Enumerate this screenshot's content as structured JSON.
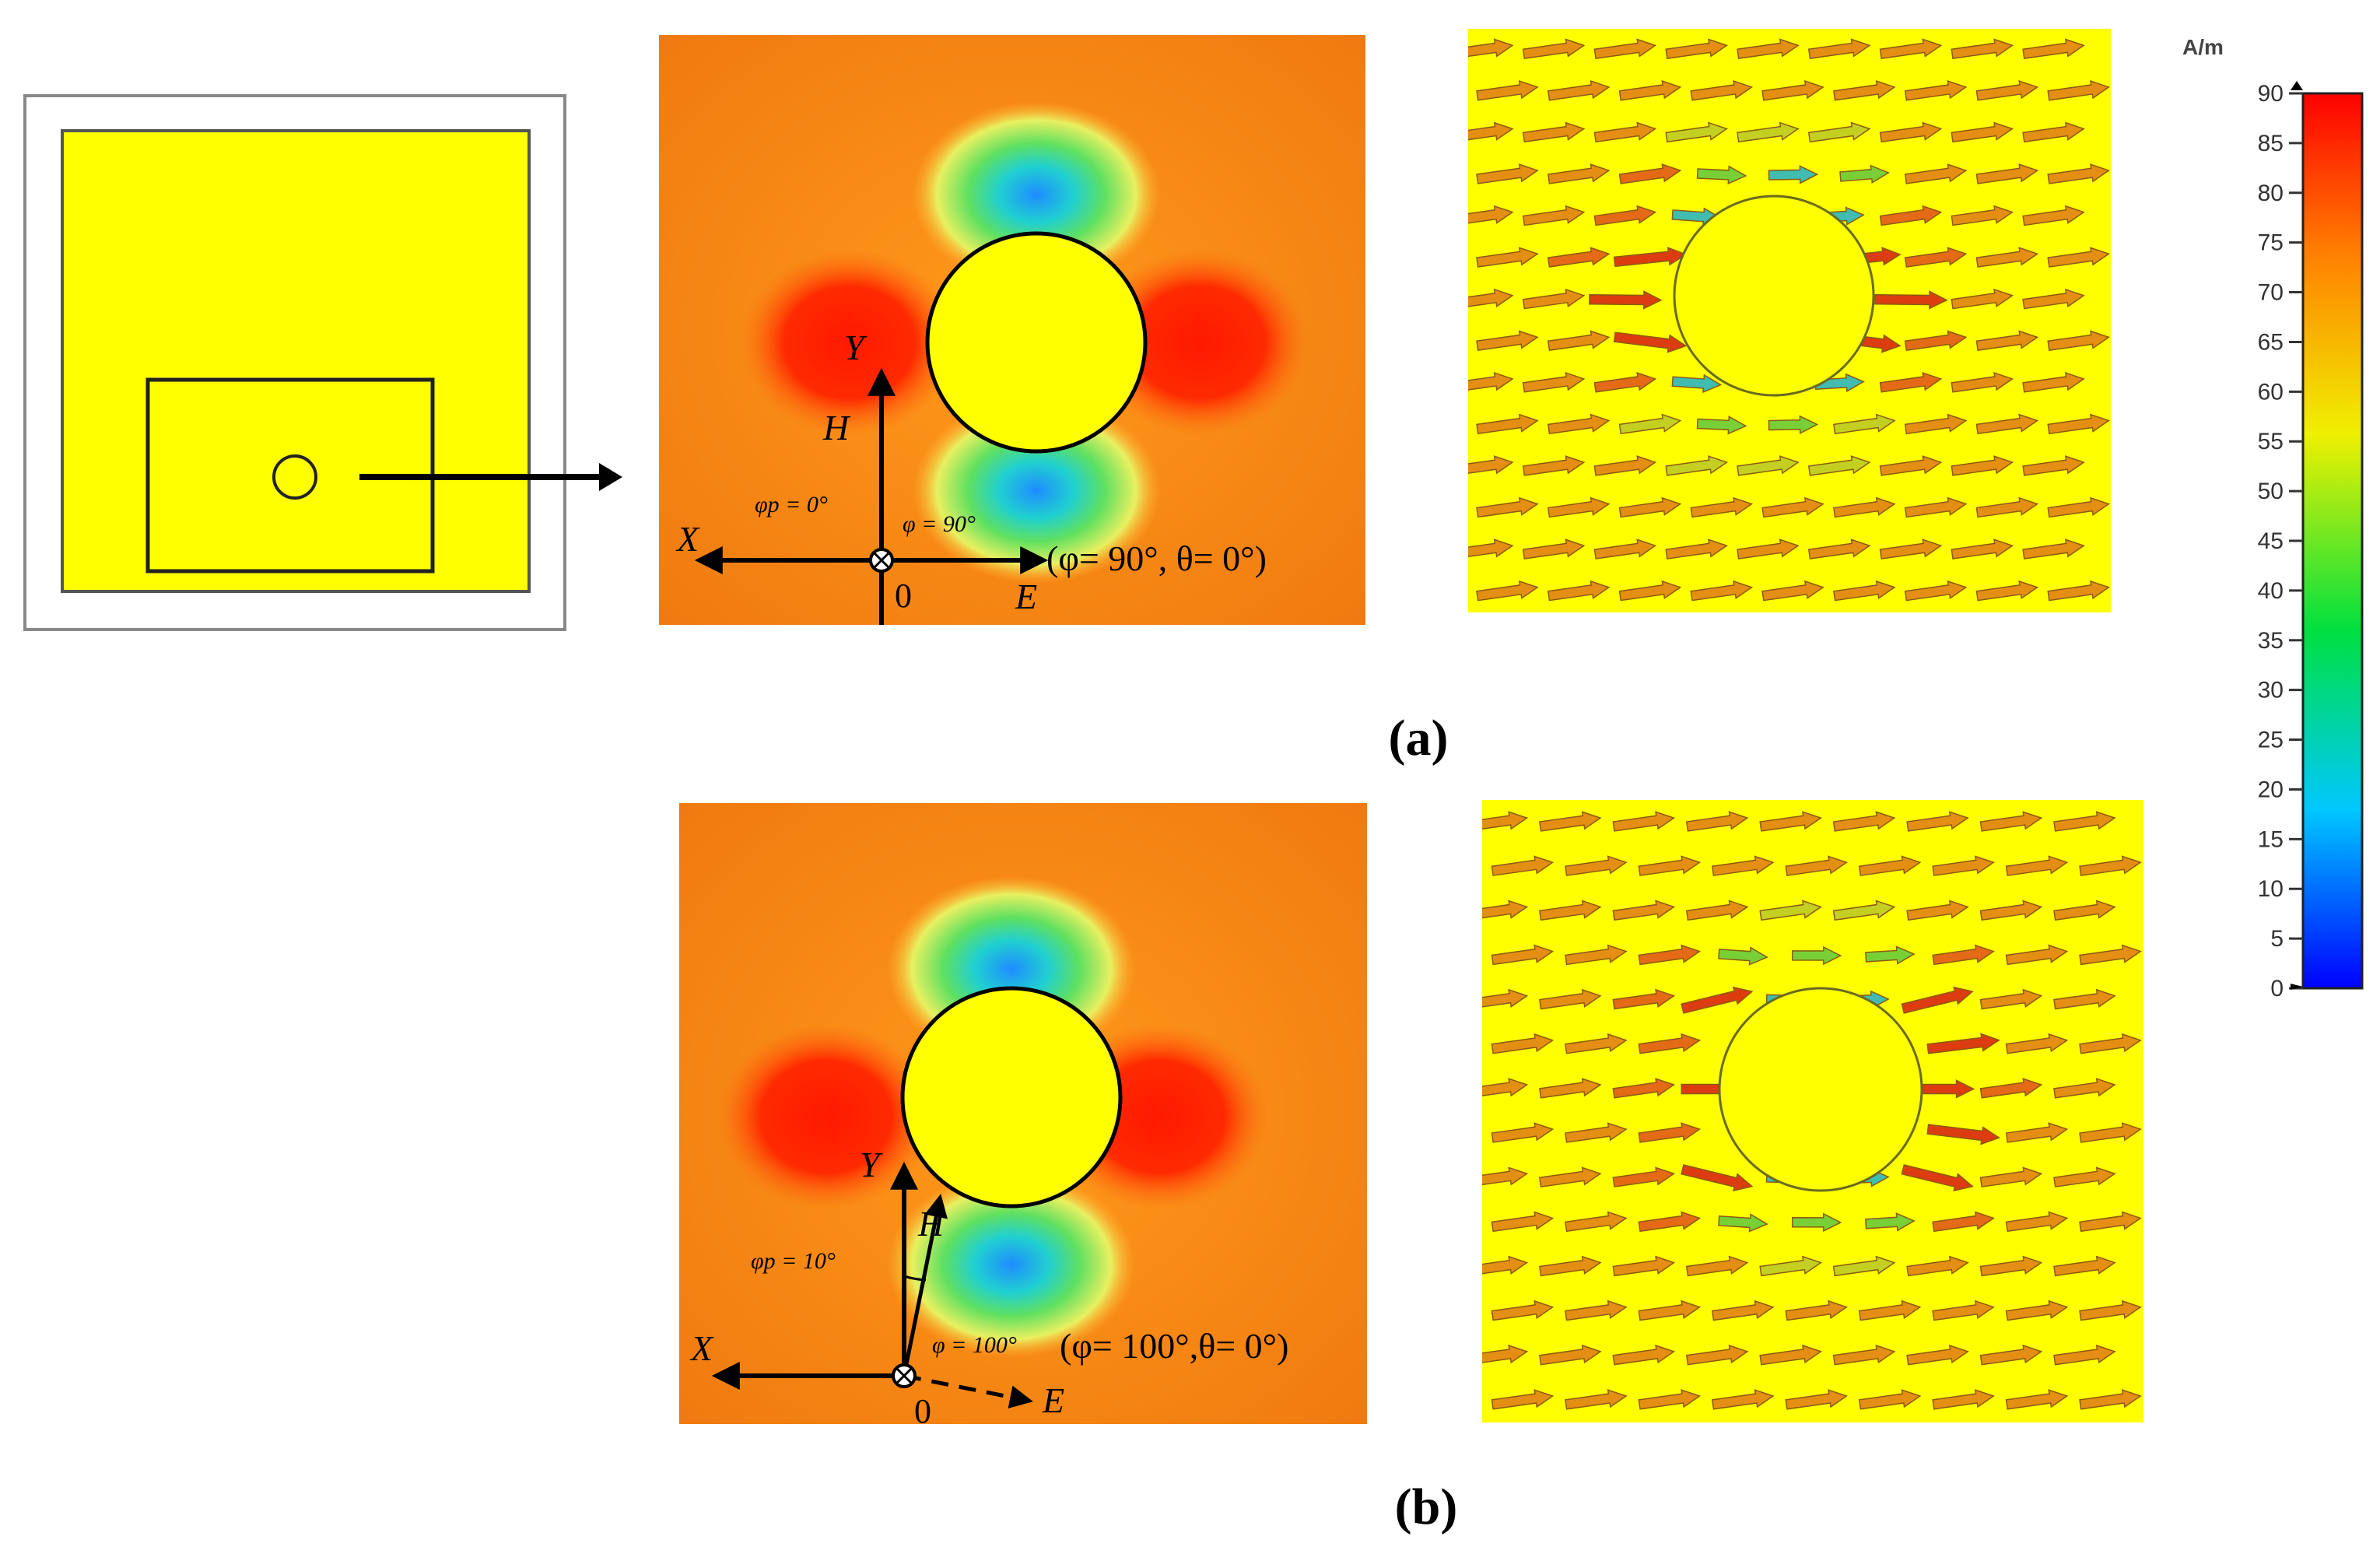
{
  "panel_labels": {
    "a": "(a)",
    "b": "(b)"
  },
  "panel_a": {
    "axis_y": "Y",
    "axis_h": "H",
    "axis_x": "X",
    "axis_e": "E",
    "origin": "0",
    "phi_p": "φp = 0°",
    "phi": "φ = 90°",
    "angles": "(φ= 90°, θ= 0°)"
  },
  "panel_b": {
    "axis_y": "Y",
    "axis_h": "H",
    "axis_x": "X",
    "axis_e": "E",
    "origin": "0",
    "phi_p": "φp = 10°",
    "phi": "φ = 100°",
    "angles": "(φ= 100°,θ= 0°)"
  },
  "colorbar": {
    "unit": "A/m",
    "ticks": [
      "90",
      "85",
      "80",
      "75",
      "70",
      "65",
      "60",
      "55",
      "50",
      "45",
      "40",
      "35",
      "30",
      "25",
      "20",
      "15",
      "10",
      "5",
      "0"
    ],
    "min": 0,
    "max": 90,
    "colors": [
      "#0000ff",
      "#00ffff",
      "#00ff00",
      "#ffff00",
      "#ff8000",
      "#ff0000"
    ]
  }
}
